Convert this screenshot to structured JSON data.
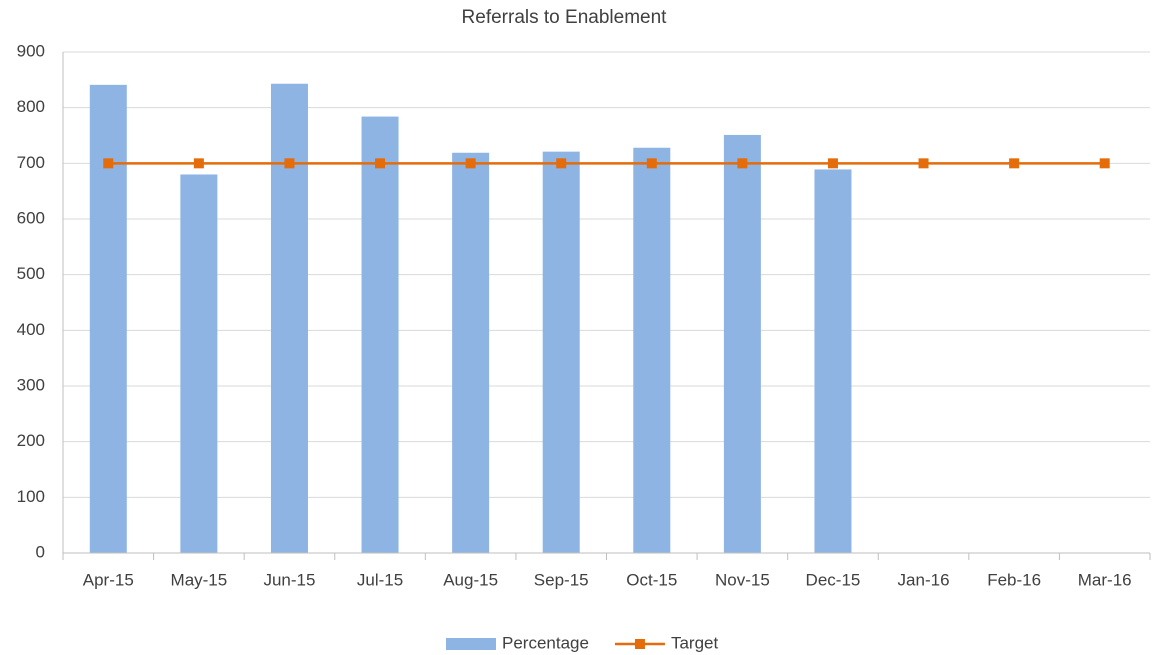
{
  "chart_data": {
    "type": "combo",
    "title": "Referrals to Enablement",
    "categories": [
      "Apr-15",
      "May-15",
      "Jun-15",
      "Jul-15",
      "Aug-15",
      "Sep-15",
      "Oct-15",
      "Nov-15",
      "Dec-15",
      "Jan-16",
      "Feb-16",
      "Mar-16"
    ],
    "series": [
      {
        "name": "Percentage",
        "type": "bar",
        "color": "#8eb4e3",
        "values": [
          841,
          680,
          843,
          784,
          719,
          721,
          728,
          751,
          689,
          null,
          null,
          null
        ]
      },
      {
        "name": "Target",
        "type": "line",
        "color": "#e46c0a",
        "values": [
          700,
          700,
          700,
          700,
          700,
          700,
          700,
          700,
          700,
          700,
          700,
          700
        ]
      }
    ],
    "ylim": [
      0,
      900
    ],
    "yticks": [
      0,
      100,
      200,
      300,
      400,
      500,
      600,
      700,
      800,
      900
    ],
    "grid": true,
    "legend": "bottom"
  }
}
